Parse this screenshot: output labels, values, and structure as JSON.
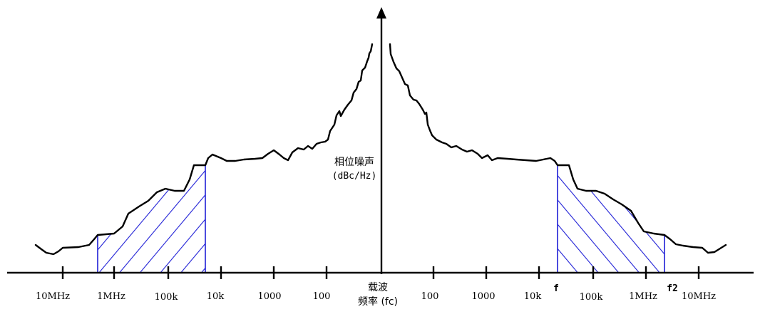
{
  "diagram": {
    "y_axis_label_line1": "相位噪声",
    "y_axis_label_line2": "(dBc/Hz)",
    "carrier_label_line1": "载波",
    "carrier_label_line2": "频率 (fc)",
    "left_ticks": [
      "10MHz",
      "1MHz",
      "100k",
      "10k",
      "1000",
      "100"
    ],
    "right_ticks": [
      "100",
      "1000",
      "10k",
      "100k",
      "1MHz",
      "10MHz"
    ],
    "band_marker_f": "f",
    "band_marker_f2": "f2",
    "colors": {
      "curve": "#000000",
      "axis": "#000000",
      "hatch": "#1f1fd6"
    }
  }
}
